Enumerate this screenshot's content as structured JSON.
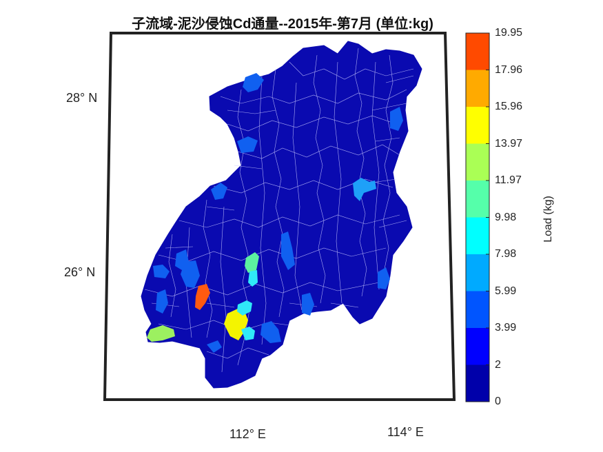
{
  "title": "子流域-泥沙侵蚀Cd通量--2015年-第7月  (单位:kg)",
  "latitude_labels": [
    "28° N",
    "26° N"
  ],
  "longitude_labels": [
    "112° E",
    "114° E"
  ],
  "colorbar": {
    "label": "Load (kg)",
    "ticks": [
      "19.95",
      "17.96",
      "15.96",
      "13.97",
      "11.97",
      "9.98",
      "7.98",
      "5.99",
      "3.99",
      "2",
      "0"
    ],
    "colors": [
      "#FF4A00",
      "#FFAA00",
      "#FFFF00",
      "#AAFF55",
      "#55FFAA",
      "#00FFFF",
      "#00AAFF",
      "#0055FF",
      "#0000FF",
      "#0000AA"
    ]
  },
  "map": {
    "base_color": "#0A0AB0",
    "boundary_color": "#C8C8FF",
    "highlight_colors": {
      "max": "#FF5A10",
      "high": "#F4F400",
      "mid_green": "#5CF0A0",
      "light_green": "#9CF060",
      "cyan": "#30E8F8",
      "light_blue": "#1EA0F8",
      "blue": "#1060F0"
    }
  }
}
